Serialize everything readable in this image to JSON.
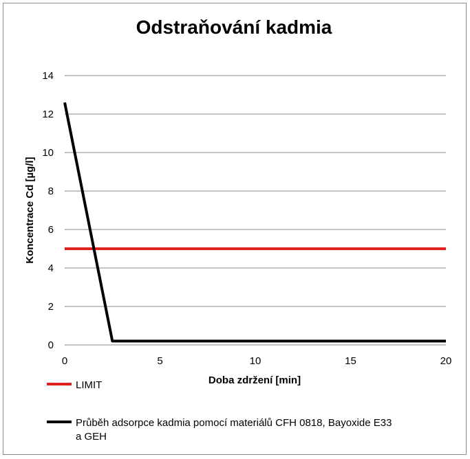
{
  "chart_data": {
    "type": "line",
    "title": "Odstraňování kadmia",
    "xlabel": "Doba zdržení [min]",
    "ylabel": "Koncentrace Cd [µg/l]",
    "xlim": [
      0,
      20
    ],
    "ylim": [
      0,
      14
    ],
    "x_ticks": [
      0,
      5,
      10,
      15,
      20
    ],
    "y_ticks": [
      0,
      2,
      4,
      6,
      8,
      10,
      12,
      14
    ],
    "grid": "horizontal",
    "legend_position": "bottom",
    "series": [
      {
        "name": "LIMIT",
        "color": "#e0201c",
        "points": [
          [
            0,
            5
          ],
          [
            20,
            5
          ]
        ]
      },
      {
        "name": "Průběh adsorpce kadmia pomocí materiálů CFH 0818, Bayoxide E33 a GEH",
        "legend_lines": [
          "Průběh adsorpce kadmia pomocí materiálů CFH 0818, Bayoxide E33",
          "a GEH"
        ],
        "color": "#000000",
        "points": [
          [
            0,
            12.6
          ],
          [
            2.5,
            0.2
          ],
          [
            20,
            0.2
          ]
        ]
      }
    ]
  }
}
